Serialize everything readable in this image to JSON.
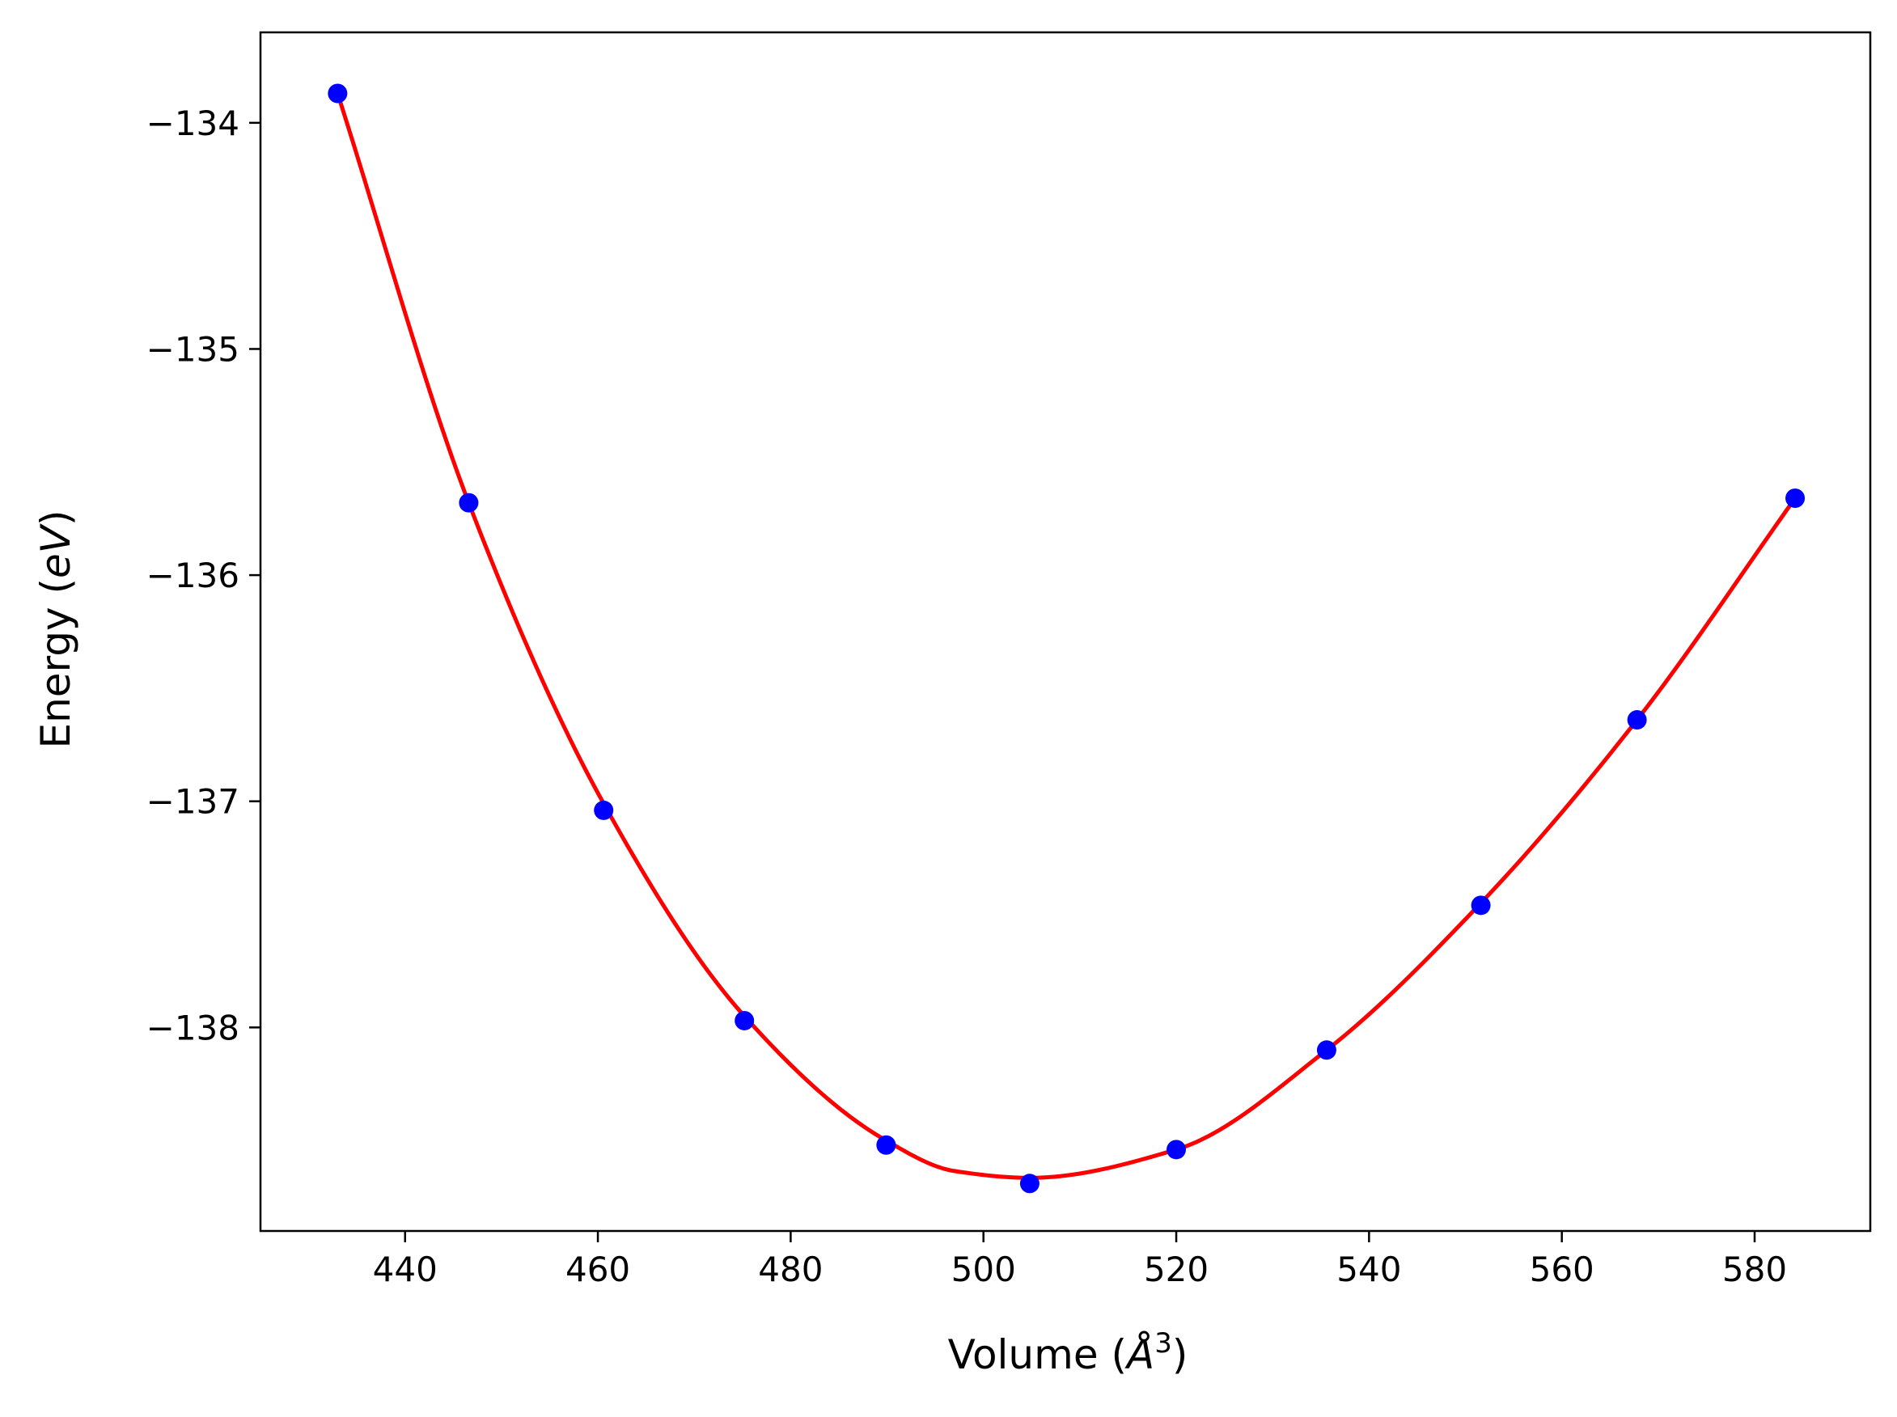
{
  "chart_data": {
    "type": "scatter",
    "title": "",
    "xlabel": {
      "main": "Volume (",
      "italic": "Å",
      "sup": "3",
      "close": ")"
    },
    "ylabel": {
      "main": "Energy (",
      "italic": "eV",
      "close": ")"
    },
    "xlim": [
      425,
      592
    ],
    "ylim": [
      -138.9,
      -133.6
    ],
    "xticks": [
      440,
      460,
      480,
      500,
      520,
      540,
      560,
      580
    ],
    "xtick_labels": [
      "440",
      "460",
      "480",
      "500",
      "520",
      "540",
      "560",
      "580"
    ],
    "yticks": [
      -134,
      -135,
      -136,
      -137,
      -138
    ],
    "ytick_labels": [
      "−134",
      "−135",
      "−136",
      "−137",
      "−138"
    ],
    "grid": false,
    "series": [
      {
        "name": "data points",
        "kind": "markers",
        "color": "#0000ff",
        "x": [
          433.0,
          446.6,
          460.6,
          475.2,
          489.9,
          504.8,
          520.0,
          535.6,
          551.6,
          567.8,
          584.2
        ],
        "y": [
          -133.87,
          -135.68,
          -137.04,
          -137.97,
          -138.52,
          -138.69,
          -138.54,
          -138.1,
          -137.46,
          -136.64,
          -135.66
        ]
      },
      {
        "name": "fit",
        "kind": "line",
        "color": "#ff0000",
        "fit_x": [
          433.0,
          446.6,
          460.6,
          475.2,
          489.9,
          497.0,
          504.8,
          520.0,
          535.6,
          551.6,
          567.8,
          584.2
        ],
        "fit_y": [
          -133.87,
          -135.68,
          -137.01,
          -137.95,
          -138.5,
          -138.635,
          -138.665,
          -138.54,
          -138.1,
          -137.45,
          -136.64,
          -135.66
        ]
      }
    ]
  }
}
